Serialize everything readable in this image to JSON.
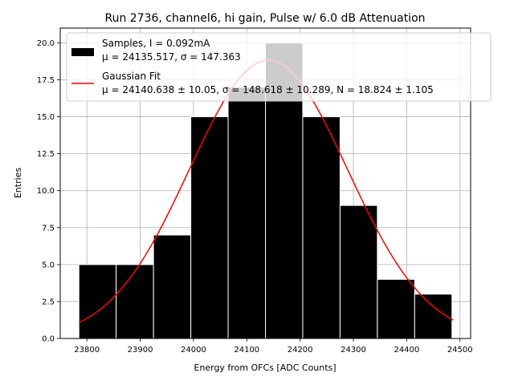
{
  "chart_data": {
    "type": "bar",
    "title": "Run 2736, channel6, hi gain, Pulse w/ 6.0 dB Attenuation",
    "xlabel": "Energy from OFCs [ADC Counts]",
    "ylabel": "Entries",
    "xlim": [
      23750,
      24520
    ],
    "ylim": [
      0,
      21
    ],
    "x_ticks": [
      23800,
      23900,
      24000,
      24100,
      24200,
      24300,
      24400,
      24500
    ],
    "y_ticks": [
      0.0,
      2.5,
      5.0,
      7.5,
      10.0,
      12.5,
      15.0,
      17.5,
      20.0
    ],
    "grid": true,
    "legend_placement": "top",
    "bins": [
      {
        "left": 23785,
        "right": 23855,
        "count": 5
      },
      {
        "left": 23855,
        "right": 23925,
        "count": 5
      },
      {
        "left": 23925,
        "right": 23995,
        "count": 7
      },
      {
        "left": 23995,
        "right": 24065,
        "count": 15
      },
      {
        "left": 24065,
        "right": 24135,
        "count": 17
      },
      {
        "left": 24135,
        "right": 24205,
        "count": 20
      },
      {
        "left": 24205,
        "right": 24275,
        "count": 15
      },
      {
        "left": 24275,
        "right": 24345,
        "count": 9
      },
      {
        "left": 24345,
        "right": 24415,
        "count": 4
      },
      {
        "left": 24415,
        "right": 24485,
        "count": 3
      }
    ],
    "fit": {
      "mu": 24140.638,
      "sigma": 148.618,
      "N": 18.824,
      "x_range": [
        23785,
        24487
      ]
    },
    "series": [
      {
        "name": "Samples, I = 0.092mA",
        "stats": "μ = 24135.517, σ = 147.363",
        "color": "#000000"
      },
      {
        "name": "Gaussian Fit",
        "stats": "μ = 24140.638 ± 10.05, σ = 148.618 ± 10.289, N = 18.824 ± 1.105",
        "color": "#ff0000"
      }
    ]
  }
}
